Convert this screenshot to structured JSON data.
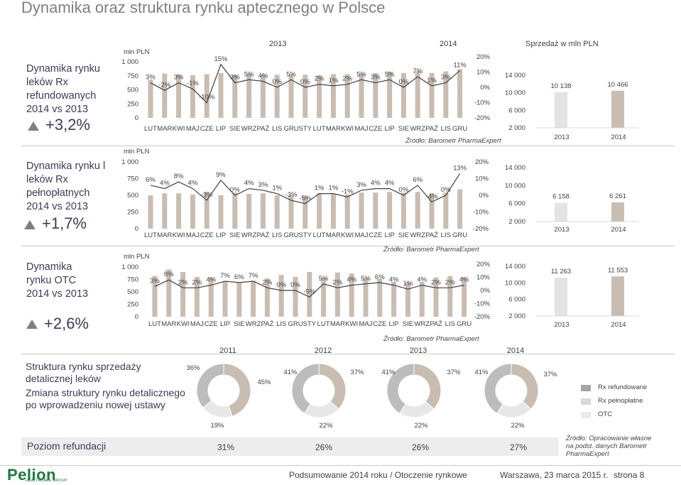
{
  "title": "Dynamika oraz struktura rynku aptecznego w Polsce",
  "header": {
    "year_left": "2013",
    "year_right": "2014",
    "sales_label": "Sprzedaż w mln PLN"
  },
  "rows": [
    {
      "label": "Dynamika rynku leków Rx refundowanych 2014 vs 2013",
      "value": "+3,2%"
    },
    {
      "label": "Dynamika rynku l leków Rx pełnopłatnych 2014 vs 2013",
      "value": "+1,7%"
    },
    {
      "label": "Dynamika rynku OTC 2014 vs 2013",
      "value": "+2,6%"
    }
  ],
  "source": "Źródło: Barometr PharmaExpert",
  "chart_data": [
    {
      "type": "bar",
      "name": "Rx refundowane",
      "y_unit": "mln PLN",
      "y_ticks": [
        "1 000",
        "750",
        "500",
        "250",
        "0"
      ],
      "ylim": [
        0,
        1000
      ],
      "y2_ticks": [
        "20%",
        "10%",
        "0%",
        "-10%",
        "-20%"
      ],
      "y2lim": [
        -20,
        20
      ],
      "categories": [
        "LUT",
        "MAR",
        "KWI",
        "MAJ",
        "CZE",
        "LIP",
        "SIE",
        "WRZ",
        "PAŹ",
        "LIS",
        "GRU",
        "STY",
        "LUT",
        "MAR",
        "KWI",
        "MAJ",
        "CZE",
        "LIP",
        "SIE",
        "WRZ",
        "PAŹ",
        "LIS",
        "GRU"
      ],
      "values": [
        680,
        790,
        770,
        760,
        780,
        800,
        770,
        790,
        770,
        770,
        770,
        770,
        760,
        780,
        780,
        790,
        800,
        820,
        800,
        830,
        800,
        830,
        870
      ],
      "growth_labels": [
        "3%",
        "-2%",
        "3%",
        "-1%",
        "-10%",
        "15%",
        "3%",
        "5%",
        "4%",
        "0%",
        "5%",
        "0%",
        "2%",
        "1%",
        "2%",
        "5%",
        "3%",
        "5%",
        "0%",
        "7%",
        "1%",
        "3%",
        "11%"
      ],
      "growth": [
        3,
        -2,
        3,
        -1,
        -10,
        15,
        3,
        5,
        4,
        0,
        5,
        0,
        2,
        1,
        2,
        5,
        3,
        5,
        0,
        7,
        1,
        3,
        11
      ]
    },
    {
      "type": "bar",
      "name": "Rx pełnopłatne",
      "y_unit": "mln PLN",
      "y_ticks": [
        "1 000",
        "750",
        "500",
        "250",
        "0"
      ],
      "ylim": [
        0,
        1000
      ],
      "y2_ticks": [
        "20%",
        "10%",
        "0%",
        "-10%",
        "-20%"
      ],
      "y2lim": [
        -20,
        20
      ],
      "categories": [
        "LUT",
        "MAR",
        "KWI",
        "MAJ",
        "CZE",
        "LIP",
        "SIE",
        "WRZ",
        "PAŹ",
        "LIS",
        "GRU",
        "STY",
        "LUT",
        "MAR",
        "KWI",
        "MAJ",
        "CZE",
        "LIP",
        "SIE",
        "WRZ",
        "PAŹ",
        "LIS",
        "GRU"
      ],
      "values": [
        500,
        530,
        530,
        510,
        550,
        500,
        540,
        520,
        530,
        500,
        500,
        490,
        530,
        520,
        510,
        540,
        540,
        550,
        540,
        550,
        530,
        540,
        590
      ],
      "growth_labels": [
        "6%",
        "4%",
        "8%",
        "4%",
        "-3%",
        "9%",
        "0%",
        "4%",
        "3%",
        "1%",
        "-3%",
        "-5%",
        "1%",
        "1%",
        "-1%",
        "3%",
        "4%",
        "4%",
        "0%",
        "6%",
        "-4%",
        "0%",
        "13%"
      ],
      "growth": [
        6,
        4,
        8,
        4,
        -3,
        9,
        0,
        4,
        3,
        1,
        -3,
        -5,
        1,
        1,
        -1,
        3,
        4,
        4,
        0,
        6,
        -4,
        0,
        13
      ]
    },
    {
      "type": "bar",
      "name": "OTC",
      "y_unit": "mln PLN",
      "y_ticks": [
        "1 000",
        "750",
        "500",
        "250",
        "0"
      ],
      "ylim": [
        0,
        1000
      ],
      "y2_ticks": [
        "20%",
        "10%",
        "0%",
        "-10%",
        "-20%"
      ],
      "y2lim": [
        -20,
        20
      ],
      "categories": [
        "LUT",
        "MAR",
        "KWI",
        "MAJ",
        "CZE",
        "LIP",
        "SIE",
        "WRZ",
        "PAŹ",
        "LIS",
        "GRU",
        "STY",
        "LUT",
        "MAR",
        "KWI",
        "MAJ",
        "CZE",
        "LIP",
        "SIE",
        "WRZ",
        "PAŹ",
        "LIS",
        "GRU"
      ],
      "values": [
        820,
        950,
        900,
        800,
        780,
        720,
        690,
        720,
        770,
        840,
        800,
        900,
        780,
        890,
        870,
        770,
        760,
        700,
        690,
        700,
        790,
        820,
        790
      ],
      "growth_labels": [
        "3%",
        "8%",
        "2%",
        "2%",
        "4%",
        "7%",
        "6%",
        "7%",
        "2%",
        "0%",
        "0%",
        "-5%",
        "5%",
        "2%",
        "4%",
        "5%",
        "6%",
        "4%",
        "1%",
        "4%",
        "2%",
        "2%",
        "4%"
      ],
      "growth": [
        3,
        8,
        2,
        2,
        4,
        7,
        6,
        7,
        2,
        0,
        0,
        -5,
        5,
        2,
        4,
        5,
        6,
        4,
        1,
        4,
        2,
        2,
        4
      ]
    },
    {
      "type": "bar",
      "name": "Sprzedaż Rx refundowane",
      "y_ticks": [
        "14 000",
        "10 000",
        "6 000",
        "2 000"
      ],
      "ylim": [
        2000,
        14000
      ],
      "categories": [
        "2013",
        "2014"
      ],
      "values": [
        10138,
        10466
      ],
      "labels": [
        "10 138",
        "10 466"
      ]
    },
    {
      "type": "bar",
      "name": "Sprzedaż Rx pełnopłatne",
      "y_ticks": [
        "14 000",
        "10 000",
        "6 000",
        "2 000"
      ],
      "ylim": [
        2000,
        14000
      ],
      "categories": [
        "2013",
        "2014"
      ],
      "values": [
        6158,
        6261
      ],
      "labels": [
        "6 158",
        "6 261"
      ]
    },
    {
      "type": "bar",
      "name": "Sprzedaż OTC",
      "y_ticks": [
        "14 000",
        "10 000",
        "6 000",
        "2 000"
      ],
      "ylim": [
        2000,
        14000
      ],
      "categories": [
        "2013",
        "2014"
      ],
      "values": [
        11263,
        11553
      ],
      "labels": [
        "11 263",
        "11 553"
      ]
    },
    {
      "type": "pie",
      "title": "Struktura rynku sprzedaży detalicznej leków",
      "years": [
        "2011",
        "2012",
        "2013",
        "2014"
      ],
      "series": [
        {
          "name": "Rx refundowane",
          "values": [
            45,
            37,
            37,
            37
          ],
          "labels": [
            "45%",
            "37%",
            "37%",
            "37%"
          ]
        },
        {
          "name": "Rx pełnopłatne",
          "values": [
            19,
            22,
            22,
            22
          ],
          "labels": [
            "19%",
            "22%",
            "22%",
            "22%"
          ]
        },
        {
          "name": "OTC",
          "values": [
            36,
            41,
            41,
            41
          ],
          "labels": [
            "36%",
            "41%",
            "41%",
            "41%"
          ]
        }
      ]
    }
  ],
  "structure": {
    "title": "Struktura rynku sprzedaży detalicznej leków",
    "subtitle": "Zmiana struktury rynku detalicznego po wprowadzeniu nowej ustawy",
    "legend": [
      "Rx refundowane",
      "Rx pełnopłatne",
      "OTC"
    ],
    "source": "Źródło: Opracowanie własne na podst. danych Barometr PharmaExpert"
  },
  "refund": {
    "label": "Poziom refundacji",
    "values": [
      "31%",
      "26%",
      "26%",
      "27%"
    ]
  },
  "footer": {
    "logo": "Pelion",
    "logo_sub": "HEALTHCARE GROUP",
    "summary": "Podsumowanie 2014 roku / Otoczenie rynkowe",
    "date": "Warszawa, 23 marca 2015 r.",
    "page": "strona 8"
  },
  "colors": {
    "bar": "#c9bcb1",
    "bar_highlight": "#e0e0e0",
    "line": "#404040",
    "pie_rx": "#c9bcb1",
    "pie_rxp": "#e7e7e7",
    "pie_otc": "#bcbcbc",
    "legend_rx": "#a6a6a6",
    "legend_rxp": "#d9d9d9",
    "legend_otc": "#eaeaea",
    "logo": "#1b7a3c"
  }
}
